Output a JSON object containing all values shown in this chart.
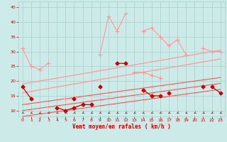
{
  "x": [
    0,
    1,
    2,
    3,
    4,
    5,
    6,
    7,
    8,
    9,
    10,
    11,
    12,
    13,
    14,
    15,
    16,
    17,
    18,
    19,
    20,
    21,
    22,
    23
  ],
  "line_rafales_max": [
    31,
    25,
    24,
    26,
    null,
    14,
    14,
    null,
    null,
    29,
    42,
    37,
    43,
    null,
    37,
    38,
    35,
    32,
    34,
    29,
    null,
    31,
    30,
    30
  ],
  "line_rafales_mid": [
    null,
    null,
    null,
    null,
    null,
    null,
    null,
    null,
    null,
    null,
    null,
    26,
    null,
    23,
    23,
    22,
    21,
    null,
    null,
    null,
    null,
    null,
    null,
    null
  ],
  "line_moyen_dark": [
    18,
    14,
    null,
    null,
    null,
    null,
    14,
    null,
    null,
    18,
    null,
    26,
    26,
    null,
    null,
    null,
    null,
    16,
    null,
    null,
    null,
    18,
    null,
    null
  ],
  "line_lower_dark": [
    null,
    null,
    null,
    null,
    11,
    10,
    11,
    12,
    12,
    null,
    null,
    null,
    null,
    null,
    17,
    15,
    15,
    null,
    null,
    null,
    null,
    null,
    18,
    16
  ],
  "trend1": [
    19,
    19.5,
    20,
    20.5,
    21,
    21.5,
    22,
    22.5,
    23,
    23.5,
    24,
    24.5,
    25,
    25.5,
    26,
    26.5,
    27,
    27.5,
    28,
    28.5,
    29,
    29.5,
    30,
    30.5
  ],
  "trend2": [
    16,
    16.5,
    17,
    17.5,
    18,
    18.5,
    19,
    19.5,
    20,
    20.5,
    21,
    21.5,
    22,
    22.5,
    23,
    23.5,
    24,
    24.5,
    25,
    25.5,
    26,
    26.5,
    27,
    27.5
  ],
  "trend3": [
    12,
    12.4,
    12.8,
    13.2,
    13.6,
    14,
    14.4,
    14.8,
    15.2,
    15.6,
    16,
    16.4,
    16.8,
    17.2,
    17.6,
    18,
    18.4,
    18.8,
    19.2,
    19.6,
    20,
    20.4,
    20.8,
    21.2
  ],
  "trend4": [
    10,
    10.4,
    10.8,
    11.2,
    11.6,
    12,
    12.4,
    12.8,
    13.2,
    13.6,
    14,
    14.4,
    14.8,
    15.2,
    15.6,
    16,
    16.4,
    16.8,
    17.2,
    17.6,
    18,
    18.4,
    18.8,
    19.2
  ],
  "trend5": [
    8,
    8.4,
    8.8,
    9.2,
    9.6,
    10,
    10.4,
    10.8,
    11.2,
    11.6,
    12,
    12.4,
    12.8,
    13.2,
    13.6,
    14,
    14.4,
    14.8,
    15.2,
    15.6,
    16,
    16.4,
    16.8,
    17.2
  ],
  "bg_color": "#cceae7",
  "grid_color": "#aacfcc",
  "color_light": "#ff9999",
  "color_mid": "#ff5555",
  "color_dark": "#cc0000",
  "xlabel": "Vent moyen/en rafales ( km/h )",
  "ylim": [
    8,
    47
  ],
  "xlim": [
    -0.5,
    23.5
  ],
  "yticks": [
    10,
    15,
    20,
    25,
    30,
    35,
    40,
    45
  ],
  "xticks": [
    0,
    1,
    2,
    3,
    4,
    5,
    6,
    7,
    8,
    9,
    10,
    11,
    12,
    13,
    14,
    15,
    16,
    17,
    18,
    19,
    20,
    21,
    22,
    23
  ]
}
